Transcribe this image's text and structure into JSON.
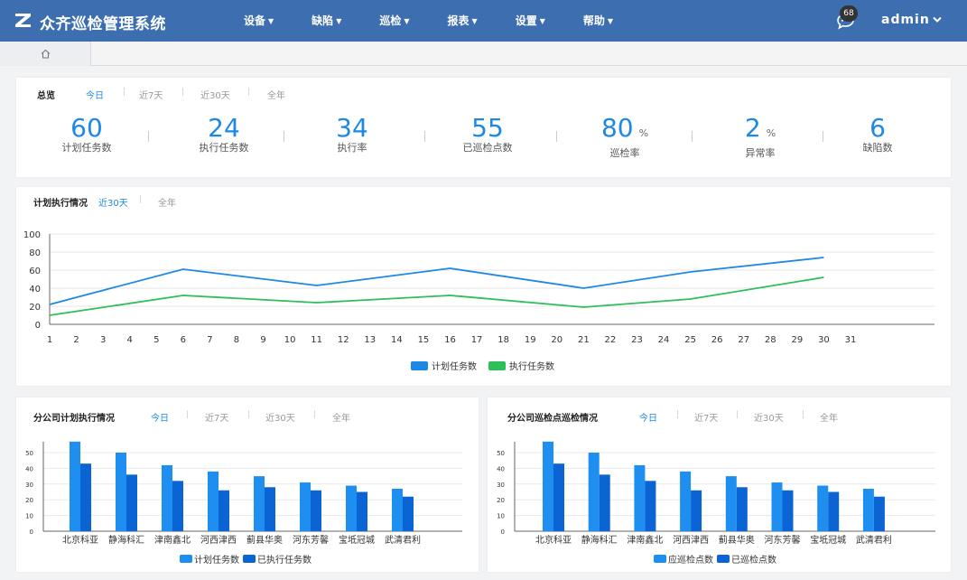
{
  "app": {
    "title": "众齐巡检管理系统"
  },
  "nav": [
    {
      "label": "设备"
    },
    {
      "label": "缺陷"
    },
    {
      "label": "巡检"
    },
    {
      "label": "报表"
    },
    {
      "label": "设置"
    },
    {
      "label": "帮助"
    }
  ],
  "header": {
    "message_count": "68",
    "user": "admin"
  },
  "overview": {
    "title": "总览",
    "tabs": [
      "今日",
      "近7天",
      "近30天",
      "全年"
    ],
    "active_tab": 0,
    "stats": [
      {
        "value": "60",
        "unit": "",
        "label": "计划任务数"
      },
      {
        "value": "24",
        "unit": "",
        "label": "执行任务数"
      },
      {
        "value": "34",
        "unit": "",
        "label": "执行率"
      },
      {
        "value": "55",
        "unit": "",
        "label": "已巡检点数"
      },
      {
        "value": "80",
        "unit": "%",
        "label": "巡检率"
      },
      {
        "value": "2",
        "unit": "%",
        "label": "异常率"
      },
      {
        "value": "6",
        "unit": "",
        "label": "缺陷数"
      }
    ]
  },
  "plan_exec": {
    "title": "计划执行情况",
    "tabs": [
      "近30天",
      "全年"
    ],
    "active_tab": 0
  },
  "branch_plan": {
    "title": "分公司计划执行情况",
    "tabs": [
      "今日",
      "近7天",
      "近30天",
      "全年"
    ],
    "active_tab": 0
  },
  "branch_points": {
    "title": "分公司巡检点巡检情况",
    "tabs": [
      "今日",
      "近7天",
      "近30天",
      "全年"
    ],
    "active_tab": 0
  },
  "colors": {
    "topbar": "#3d6eb0",
    "accent": "#1e88e5",
    "line_green": "#2cbf5a",
    "bar_light": "#1e8ff0",
    "bar_dark": "#0b64d3"
  },
  "chart_data": [
    {
      "type": "line",
      "x": [
        1,
        2,
        3,
        4,
        5,
        6,
        7,
        8,
        9,
        10,
        11,
        12,
        13,
        14,
        15,
        16,
        17,
        18,
        19,
        20,
        21,
        22,
        23,
        24,
        25,
        26,
        27,
        28,
        29,
        30,
        31
      ],
      "ylim": [
        0,
        100
      ],
      "yticks": [
        0,
        20,
        40,
        60,
        80,
        100
      ],
      "grid": true,
      "legend": "bottom",
      "series": [
        {
          "name": "计划任务数",
          "color": "#1e88e5",
          "x": [
            1,
            6,
            11,
            16,
            21,
            25,
            30
          ],
          "values": [
            22,
            61,
            43,
            62,
            40,
            58,
            74
          ]
        },
        {
          "name": "执行任务数",
          "color": "#2cbf5a",
          "x": [
            1,
            6,
            11,
            16,
            21,
            25,
            30
          ],
          "values": [
            10,
            32,
            24,
            32,
            19,
            28,
            52
          ]
        }
      ]
    },
    {
      "type": "bar",
      "categories": [
        "北京科亚",
        "静海科汇",
        "津南鑫北",
        "河西津西",
        "蓟县华奥",
        "河东芳馨",
        "宝坻冠城",
        "武清君利"
      ],
      "ylim": [
        0,
        60
      ],
      "yticks": [
        0,
        10,
        20,
        30,
        40,
        50
      ],
      "grid": true,
      "legend": "bottom",
      "series": [
        {
          "name": "计划任务数",
          "color": "#1e8ff0",
          "values": [
            57,
            50,
            42,
            38,
            35,
            31,
            29,
            27
          ]
        },
        {
          "name": "已执行任务数",
          "color": "#0b64d3",
          "values": [
            43,
            36,
            32,
            26,
            28,
            26,
            25,
            22
          ]
        }
      ]
    },
    {
      "type": "bar",
      "categories": [
        "北京科亚",
        "静海科汇",
        "津南鑫北",
        "河西津西",
        "蓟县华奥",
        "河东芳馨",
        "宝坻冠城",
        "武清君利"
      ],
      "ylim": [
        0,
        60
      ],
      "yticks": [
        0,
        10,
        20,
        30,
        40,
        50
      ],
      "grid": true,
      "legend": "bottom",
      "series": [
        {
          "name": "应巡检点数",
          "color": "#1e8ff0",
          "values": [
            57,
            50,
            42,
            38,
            35,
            31,
            29,
            27
          ]
        },
        {
          "name": "已巡检点数",
          "color": "#0b64d3",
          "values": [
            43,
            36,
            32,
            26,
            28,
            26,
            25,
            22
          ]
        }
      ]
    }
  ]
}
